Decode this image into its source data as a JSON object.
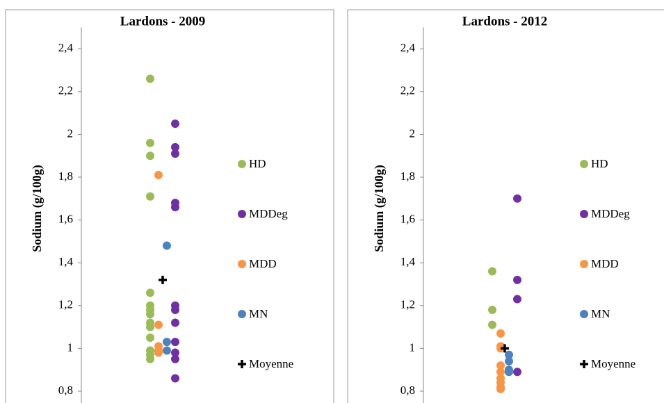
{
  "chart_data": [
    {
      "type": "scatter",
      "title": "Lardons - 2009",
      "y_label": "Sodium (g/100g)",
      "ylim": [
        0.8,
        2.5
      ],
      "yticks": [
        {
          "value": 0.8,
          "label": "0,8"
        },
        1,
        {
          "value": 1.2,
          "label": "1,2"
        },
        {
          "value": 1.4,
          "label": "1,4"
        },
        {
          "value": 1.6,
          "label": "1,6"
        },
        {
          "value": 1.8,
          "label": "1,8"
        },
        2,
        {
          "value": 2.2,
          "label": "2,2"
        },
        {
          "value": 2.4,
          "label": "2,4"
        }
      ],
      "series": [
        {
          "name": "HD",
          "color": "#9bbb59",
          "values": [
            2.26,
            1.96,
            1.9,
            1.71,
            1.26,
            1.2,
            1.18,
            1.16,
            1.12,
            1.1,
            1.05,
            0.99,
            0.97,
            0.95
          ]
        },
        {
          "name": "MDDeg",
          "color": "#7030a0",
          "values": [
            2.05,
            1.94,
            1.91,
            1.68,
            1.66,
            1.2,
            1.18,
            1.12,
            1.03,
            0.98,
            0.95,
            0.86
          ]
        },
        {
          "name": "MDD",
          "color": "#f79646",
          "values": [
            1.81,
            1.11,
            1.01,
            0.99,
            0.98
          ]
        },
        {
          "name": "MN",
          "color": "#4f81bd",
          "values": [
            1.48,
            1.03,
            0.99
          ]
        },
        {
          "name": "Moyenne",
          "color": "#000000",
          "marker": "cross",
          "values": [
            1.32
          ]
        }
      ]
    },
    {
      "type": "scatter",
      "title": "Lardons - 2012",
      "y_label": "Sodium (g/100g)",
      "ylim": [
        0.8,
        2.5
      ],
      "yticks": [
        {
          "value": 0.8,
          "label": "0,8"
        },
        1,
        {
          "value": 1.2,
          "label": "1,2"
        },
        {
          "value": 1.4,
          "label": "1,4"
        },
        {
          "value": 1.6,
          "label": "1,6"
        },
        {
          "value": 1.8,
          "label": "1,8"
        },
        2,
        {
          "value": 2.2,
          "label": "2,2"
        },
        {
          "value": 2.4,
          "label": "2,4"
        }
      ],
      "series": [
        {
          "name": "HD",
          "color": "#9bbb59",
          "values": [
            1.36,
            1.18,
            1.11
          ]
        },
        {
          "name": "MDDeg",
          "color": "#7030a0",
          "values": [
            1.7,
            1.32,
            1.23,
            0.89
          ]
        },
        {
          "name": "MDD",
          "color": "#f79646",
          "values": [
            1.07,
            1.01,
            1.0,
            0.92,
            0.89,
            0.86,
            0.84,
            0.82,
            0.81
          ]
        },
        {
          "name": "MN",
          "color": "#4f81bd",
          "values": [
            0.97,
            0.94,
            0.9,
            0.89
          ]
        },
        {
          "name": "Moyenne",
          "color": "#000000",
          "marker": "cross",
          "values": [
            1.0
          ]
        }
      ]
    }
  ]
}
